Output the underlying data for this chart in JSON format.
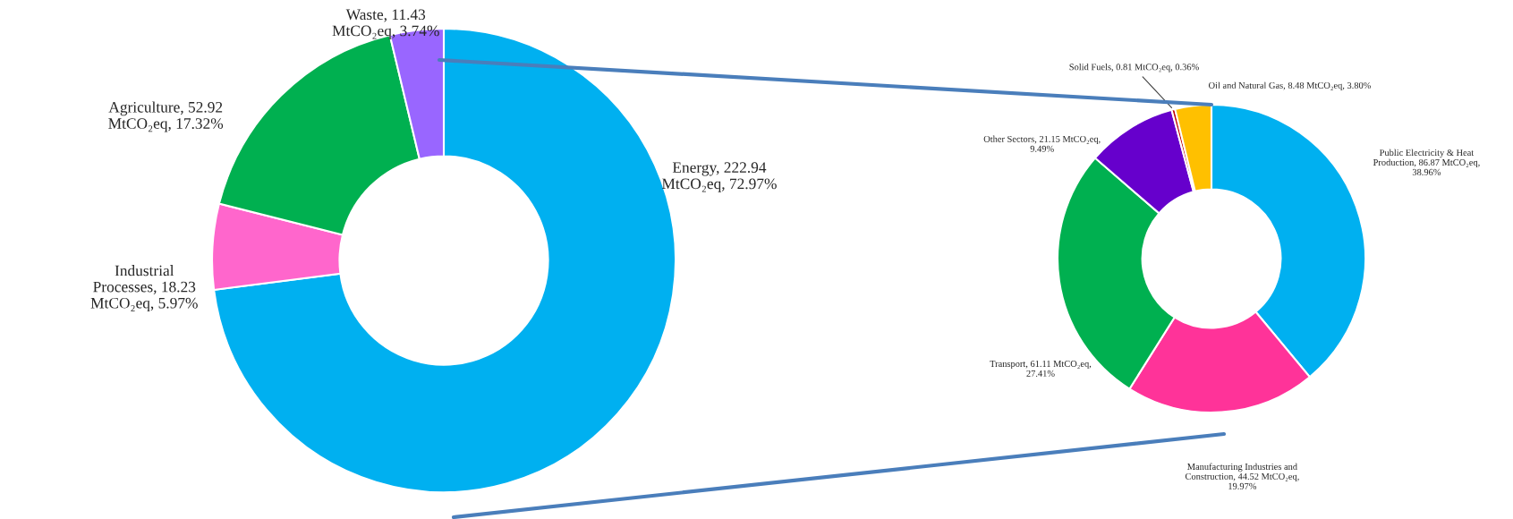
{
  "chart_data": [
    {
      "type": "donut",
      "categories": [
        "Energy",
        "Industrial\nProcesses",
        "Agriculture",
        "Waste"
      ],
      "values": [
        222.94,
        18.23,
        52.92,
        11.43
      ],
      "colors": [
        "#00b0f0",
        "#ff66cc",
        "#00b050",
        "#9966ff"
      ],
      "value_labels": [
        "222.94\nMtCO₂eq, 72.97%",
        "18.23\nMtCO₂eq, 5.97%",
        "52.92\nMtCO₂eq, 17.32%",
        "11.43\nMtCO₂eq, 3.74%"
      ]
    },
    {
      "type": "donut",
      "categories": [
        "Public Electricity & Heat\nProduction",
        "Manufacturing Industries and\nConstruction",
        "Transport",
        "Other Sectors",
        "Solid Fuels",
        "Oil and Natural Gas"
      ],
      "values": [
        86.87,
        44.52,
        61.11,
        21.15,
        0.81,
        8.48
      ],
      "colors": [
        "#00b0f0",
        "#ff3399",
        "#00b050",
        "#6600cc",
        "#c00000",
        "#ffc000"
      ],
      "value_labels": [
        "86.87 MtCO₂eq,\n38.96%",
        "44.52 MtCO₂eq,\n19.97%",
        "61.11 MtCO₂eq,\n27.41%",
        "21.15 MtCO₂eq,\n9.49%",
        "0.81 MtCO₂eq, 0.36%",
        "8.48 MtCO₂eq, 3.80%"
      ]
    }
  ]
}
